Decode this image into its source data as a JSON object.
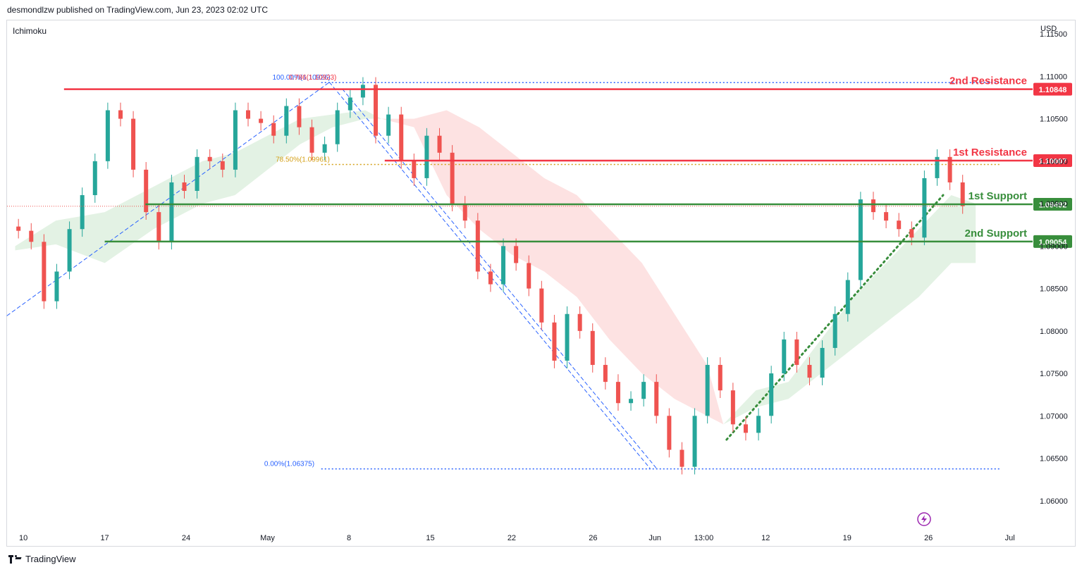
{
  "header": {
    "publish_line": "desmondlzw published on TradingView.com, Jun 23, 2023 02:02 UTC"
  },
  "indicator_label": "Ichimoku",
  "currency": "USD",
  "footer": {
    "brand": "TradingView"
  },
  "colors": {
    "up": "#26a69a",
    "down": "#ef5350",
    "resistance": "#f23645",
    "support": "#388e3c",
    "fib": "#2962ff",
    "fib_gold": "#d4a017",
    "cloud_green": "#e3f2e4",
    "cloud_red": "#fde2e2"
  },
  "chart_data": {
    "type": "candlestick",
    "symbol_quote": "USD",
    "ylim": [
      1.0565,
      1.1165
    ],
    "y_ticks": [
      "1.11500",
      "1.11000",
      "1.10500",
      "1.10000",
      "1.09500",
      "1.09000",
      "1.08500",
      "1.08000",
      "1.07500",
      "1.07000",
      "1.06500",
      "1.06000"
    ],
    "y_tick_values": [
      1.115,
      1.11,
      1.105,
      1.1,
      1.095,
      1.09,
      1.085,
      1.08,
      1.075,
      1.07,
      1.065,
      1.06
    ],
    "x_ticks": [
      {
        "label": "10",
        "t": 0
      },
      {
        "label": "17",
        "t": 5
      },
      {
        "label": "24",
        "t": 10
      },
      {
        "label": "May",
        "t": 15
      },
      {
        "label": "8",
        "t": 20
      },
      {
        "label": "15",
        "t": 25
      },
      {
        "label": "22",
        "t": 30
      },
      {
        "label": "26",
        "t": 35
      },
      {
        "label": "Jun",
        "t": 38.8
      },
      {
        "label": "13:00",
        "t": 41.8
      },
      {
        "label": "12",
        "t": 45.6
      },
      {
        "label": "19",
        "t": 50.6
      },
      {
        "label": "26",
        "t": 55.6
      },
      {
        "label": "Jul",
        "t": 60.6
      }
    ],
    "xlim": [
      -1,
      62
    ],
    "closes": [
      1.0918,
      1.0905,
      1.0835,
      1.087,
      1.092,
      1.096,
      1.1,
      1.106,
      1.105,
      1.099,
      1.094,
      1.0905,
      1.0975,
      1.0965,
      1.1005,
      1.1,
      1.099,
      1.106,
      1.105,
      1.1045,
      1.103,
      1.1065,
      1.104,
      1.101,
      1.102,
      1.106,
      1.1075,
      1.109,
      1.103,
      1.1055,
      1.1,
      1.098,
      1.103,
      1.101,
      1.095,
      1.093,
      1.087,
      1.0855,
      1.09,
      1.088,
      1.085,
      1.081,
      1.0765,
      1.082,
      1.08,
      1.076,
      1.074,
      1.0715,
      1.072,
      1.074,
      1.07,
      1.066,
      1.064,
      1.07,
      1.076,
      1.073,
      1.069,
      1.068,
      1.07,
      1.075,
      1.079,
      1.076,
      1.0745,
      1.078,
      1.082,
      1.086,
      1.0955,
      1.094,
      1.093,
      1.092,
      1.091,
      1.098,
      1.1005,
      1.0975,
      1.0947
    ],
    "cloud_green": [
      [
        -0.5,
        1.0895,
        1.09
      ],
      [
        2,
        1.0902,
        1.093
      ],
      [
        5,
        1.088,
        1.094
      ],
      [
        8,
        1.092,
        1.097
      ],
      [
        11,
        1.095,
        1.1
      ],
      [
        13,
        1.096,
        1.101
      ],
      [
        15,
        1.099,
        1.103
      ],
      [
        17,
        1.102,
        1.105
      ],
      [
        19,
        1.104,
        1.1055
      ],
      [
        21,
        1.105,
        1.106
      ],
      [
        22,
        1.105,
        1.105
      ],
      [
        43,
        1.069,
        1.069
      ],
      [
        45,
        1.071,
        1.073
      ],
      [
        47,
        1.072,
        1.074
      ],
      [
        49,
        1.075,
        1.079
      ],
      [
        51,
        1.078,
        1.084
      ],
      [
        53,
        1.081,
        1.088
      ],
      [
        55,
        1.084,
        1.092
      ],
      [
        57,
        1.088,
        1.096
      ],
      [
        58.5,
        1.088,
        1.095
      ]
    ],
    "cloud_red": [
      [
        22,
        1.105,
        1.105
      ],
      [
        24,
        1.104,
        1.105
      ],
      [
        26,
        1.096,
        1.106
      ],
      [
        28,
        1.092,
        1.104
      ],
      [
        30,
        1.089,
        1.101
      ],
      [
        32,
        1.087,
        1.098
      ],
      [
        34,
        1.084,
        1.096
      ],
      [
        36,
        1.079,
        1.092
      ],
      [
        38,
        1.075,
        1.088
      ],
      [
        40,
        1.072,
        1.082
      ],
      [
        42,
        1.07,
        1.076
      ],
      [
        43,
        1.069,
        1.069
      ]
    ],
    "levels": [
      {
        "name": "2nd Resistance",
        "value": "1.10848",
        "y": 1.10848,
        "role": "resistance",
        "from_t": 2.5
      },
      {
        "name": "1st Resistance",
        "value": "1.10007",
        "y": 1.10007,
        "role": "resistance",
        "from_t": 22.2
      },
      {
        "name": "1st Support",
        "value": "1.09492",
        "y": 1.09492,
        "role": "support",
        "from_t": 7.5
      },
      {
        "name": "2nd Support",
        "value": "1.09054",
        "y": 1.09054,
        "role": "support",
        "from_t": 5.0
      }
    ],
    "fib_labels": [
      {
        "text": "100.00%(1.10926)",
        "t": 15.3,
        "y": 1.10926,
        "color": "fib"
      },
      {
        "text": "0.786(1.10923)",
        "t": 16.3,
        "y": 1.10926,
        "color": "resistance"
      },
      {
        "text": "78.50%(1.09961)",
        "t": 15.5,
        "y": 1.09961,
        "color": "fib_gold"
      },
      {
        "text": "0.00%(1.06375)",
        "t": 14.8,
        "y": 1.06375,
        "color": "fib"
      }
    ],
    "fib_lines": [
      {
        "y": 1.10926,
        "from_t": 18.3,
        "to_t": 60
      },
      {
        "y": 1.09961,
        "from_t": 18.3,
        "to_t": 60
      },
      {
        "y": 1.06375,
        "from_t": 18.3,
        "to_t": 60
      }
    ],
    "trend_lines": [
      {
        "from": [
          -1,
          1.0818
        ],
        "to": [
          18.8,
          1.1093
        ],
        "style": "dashed-blue"
      },
      {
        "from": [
          18.8,
          1.1093
        ],
        "to": [
          38.5,
          1.0638
        ],
        "style": "dashed-blue"
      },
      {
        "from": [
          19.6,
          1.1085
        ],
        "to": [
          38.9,
          1.0638
        ],
        "style": "dashed-blue"
      },
      {
        "from": [
          43.2,
          1.0672
        ],
        "to": [
          56.5,
          1.096
        ],
        "style": "dotted-green"
      }
    ],
    "current_price": 1.0947
  }
}
